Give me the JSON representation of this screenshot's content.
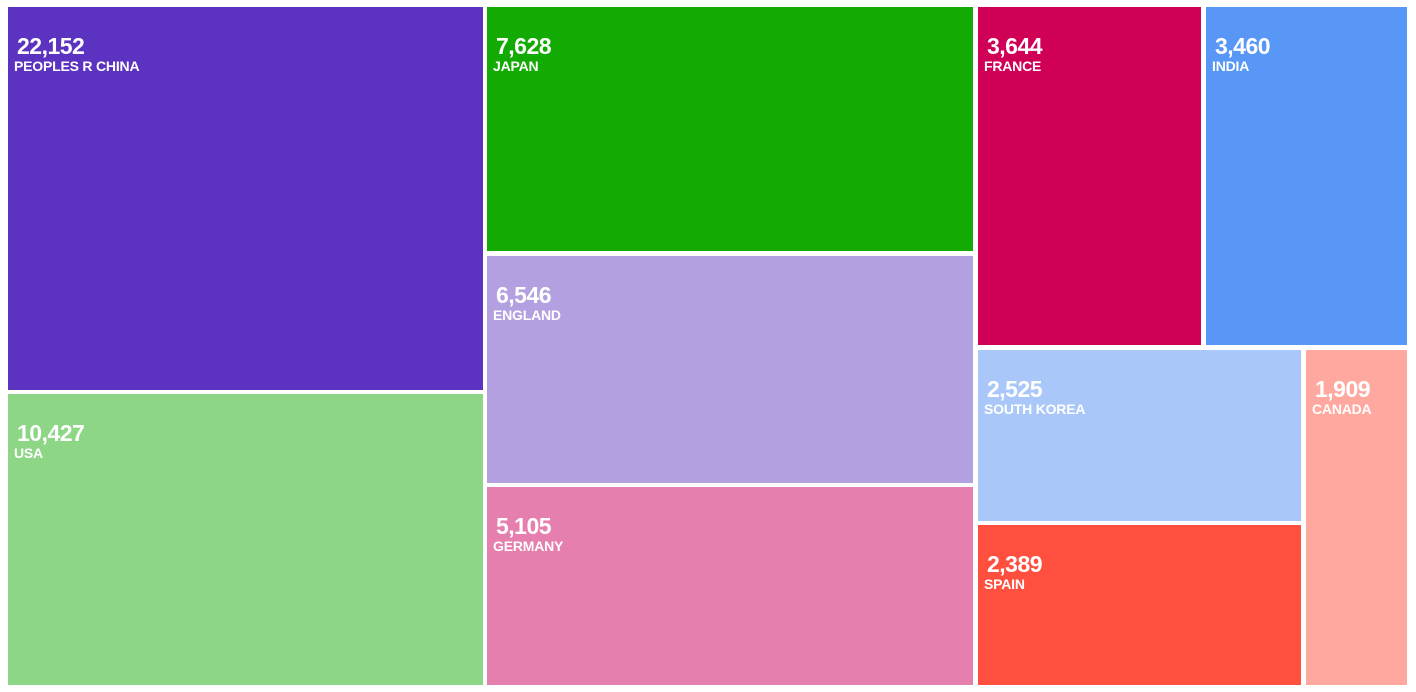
{
  "chart_data": {
    "type": "treemap",
    "title": "",
    "items": [
      {
        "label": "PEOPLES R CHINA",
        "value": 22152,
        "display": "22,152",
        "color": "#5c33c0"
      },
      {
        "label": "USA",
        "value": 10427,
        "display": "10,427",
        "color": "#8cd685"
      },
      {
        "label": "JAPAN",
        "value": 7628,
        "display": "7,628",
        "color": "#14aa04"
      },
      {
        "label": "ENGLAND",
        "value": 6546,
        "display": "6,546",
        "color": "#b3a0e0"
      },
      {
        "label": "GERMANY",
        "value": 5105,
        "display": "5,105",
        "color": "#e57fad"
      },
      {
        "label": "FRANCE",
        "value": 3644,
        "display": "3,644",
        "color": "#d00057"
      },
      {
        "label": "INDIA",
        "value": 3460,
        "display": "3,460",
        "color": "#5997f7"
      },
      {
        "label": "SOUTH KOREA",
        "value": 2525,
        "display": "2,525",
        "color": "#a9c8f9"
      },
      {
        "label": "SPAIN",
        "value": 2389,
        "display": "2,389",
        "color": "#ff4f3f"
      },
      {
        "label": "CANADA",
        "value": 1909,
        "display": "1,909",
        "color": "#ffa89f"
      }
    ]
  }
}
